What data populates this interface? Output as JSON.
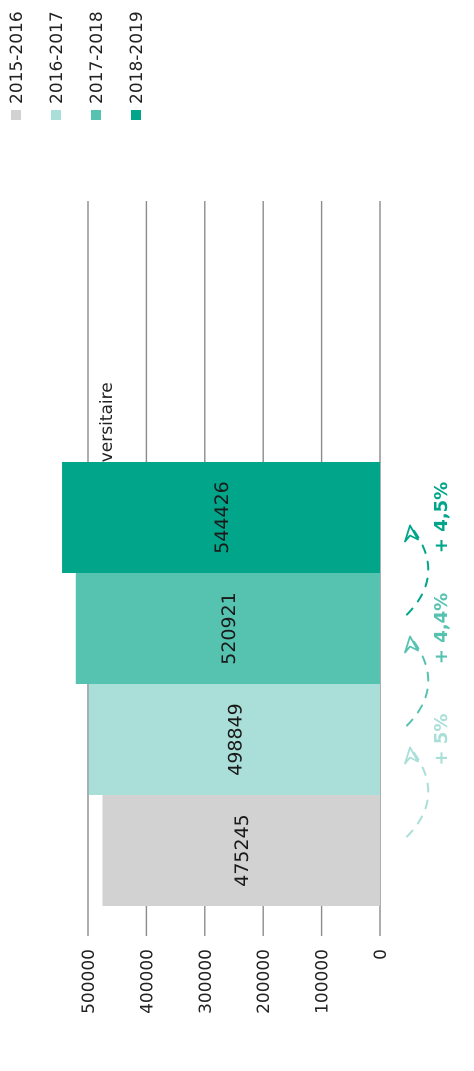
{
  "chart_data": {
    "type": "bar",
    "title": "Nombre d'entrée par année universitaire",
    "categories": [
      "2015-2016",
      "2016-2017",
      "2017-2018",
      "2018-2019"
    ],
    "values": [
      475245,
      498849,
      520921,
      544426
    ],
    "ylim": [
      0,
      550000
    ],
    "yticks": [
      0,
      100000,
      200000,
      300000,
      400000,
      500000
    ],
    "grid": true,
    "legend": "right",
    "colors": [
      "#d2d2d2",
      "#a9dfd8",
      "#56c2b0",
      "#00a58a"
    ],
    "growth": [
      {
        "label": "+ 5%",
        "color": "#a9dfd8"
      },
      {
        "label": "+ 4,4%",
        "color": "#56c2b0"
      },
      {
        "label": "+ 4,5%",
        "color": "#00a58a"
      }
    ]
  }
}
